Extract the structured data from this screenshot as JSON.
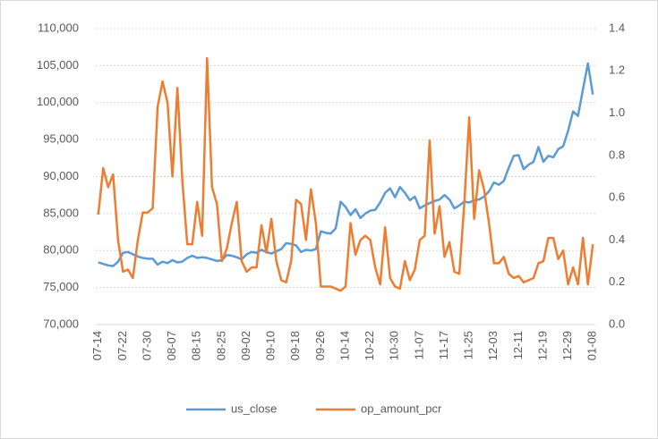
{
  "chart_data": {
    "type": "line",
    "categories": [
      "07-14",
      null,
      null,
      null,
      null,
      "07-22",
      null,
      null,
      null,
      null,
      "07-30",
      null,
      null,
      null,
      null,
      "08-07",
      null,
      null,
      null,
      null,
      "08-15",
      null,
      null,
      null,
      null,
      "08-25",
      null,
      null,
      null,
      null,
      "09-02",
      null,
      null,
      null,
      null,
      "09-10",
      null,
      null,
      null,
      null,
      "09-18",
      null,
      null,
      null,
      null,
      "09-26",
      null,
      null,
      null,
      null,
      "10-14",
      null,
      null,
      null,
      null,
      "10-22",
      null,
      null,
      null,
      null,
      "10-30",
      null,
      null,
      null,
      null,
      "11-07",
      null,
      null,
      null,
      null,
      "11-17",
      null,
      null,
      null,
      null,
      "11-25",
      null,
      null,
      null,
      null,
      "12-03",
      null,
      null,
      null,
      null,
      "12-11",
      null,
      null,
      null,
      null,
      "12-19",
      null,
      null,
      null,
      null,
      "12-29",
      null,
      null,
      null,
      null,
      "01-08"
    ],
    "series": [
      {
        "name": "us_close",
        "color": "#5b9bd5",
        "axis": "y",
        "values": [
          78400,
          78200,
          78000,
          77900,
          78500,
          79700,
          79800,
          79500,
          79200,
          79000,
          78900,
          78900,
          78100,
          78500,
          78300,
          78700,
          78400,
          78500,
          79000,
          79300,
          79000,
          79100,
          79000,
          78800,
          78600,
          78700,
          79400,
          79300,
          79100,
          78800,
          79500,
          79800,
          79700,
          80100,
          79800,
          79600,
          79900,
          80200,
          81000,
          80900,
          80700,
          79800,
          80100,
          80000,
          80200,
          82600,
          82400,
          82300,
          83000,
          86600,
          85900,
          84800,
          85600,
          84400,
          85000,
          85400,
          85500,
          86500,
          87800,
          88400,
          87200,
          88600,
          87800,
          86800,
          87300,
          85700,
          86100,
          86400,
          86700,
          86900,
          87500,
          86900,
          85700,
          86100,
          86600,
          86500,
          86800,
          86900,
          87300,
          88000,
          89200,
          88900,
          89400,
          91200,
          92800,
          92900,
          91000,
          91600,
          92000,
          94000,
          92000,
          92800,
          92600,
          93700,
          94100,
          96200,
          98800,
          98200,
          101800,
          105300,
          101100
        ]
      },
      {
        "name": "op_amount_pcr",
        "color": "#ed7d31",
        "axis": "y2",
        "values": [
          0.52,
          0.74,
          0.65,
          0.71,
          0.4,
          0.25,
          0.26,
          0.22,
          0.4,
          0.53,
          0.53,
          0.55,
          1.03,
          1.15,
          1.05,
          0.7,
          1.12,
          0.68,
          0.38,
          0.38,
          0.58,
          0.42,
          1.26,
          0.65,
          0.57,
          0.3,
          0.36,
          0.48,
          0.58,
          0.3,
          0.25,
          0.27,
          0.27,
          0.47,
          0.34,
          0.5,
          0.3,
          0.21,
          0.2,
          0.3,
          0.59,
          0.57,
          0.4,
          0.64,
          0.48,
          0.18,
          0.18,
          0.18,
          0.17,
          0.16,
          0.18,
          0.48,
          0.33,
          0.4,
          0.42,
          0.4,
          0.27,
          0.19,
          0.46,
          0.22,
          0.18,
          0.17,
          0.3,
          0.21,
          0.26,
          0.4,
          0.42,
          0.87,
          0.43,
          0.56,
          0.32,
          0.39,
          0.25,
          0.24,
          0.57,
          0.98,
          0.5,
          0.73,
          0.64,
          0.48,
          0.29,
          0.29,
          0.32,
          0.24,
          0.22,
          0.23,
          0.2,
          0.21,
          0.22,
          0.29,
          0.3,
          0.41,
          0.41,
          0.31,
          0.35,
          0.19,
          0.27,
          0.19,
          0.41,
          0.19,
          0.38
        ]
      }
    ],
    "ylim": [
      70000,
      110000
    ],
    "yticks": [
      {
        "value": 70000,
        "label": "70,000"
      },
      {
        "value": 75000,
        "label": "75,000"
      },
      {
        "value": 80000,
        "label": "80,000"
      },
      {
        "value": 85000,
        "label": "85,000"
      },
      {
        "value": 90000,
        "label": "90,000"
      },
      {
        "value": 95000,
        "label": "95,000"
      },
      {
        "value": 100000,
        "label": "100,000"
      },
      {
        "value": 105000,
        "label": "105,000"
      },
      {
        "value": 110000,
        "label": "110,000"
      }
    ],
    "y2lim": [
      0,
      1.4
    ],
    "y2ticks": [
      {
        "value": 0,
        "label": "0.0"
      },
      0.2,
      0.4,
      0.6,
      0.8,
      {
        "value": 1,
        "label": "1.0"
      },
      1.2,
      1.4
    ],
    "grid": true,
    "legend": "bottom"
  }
}
